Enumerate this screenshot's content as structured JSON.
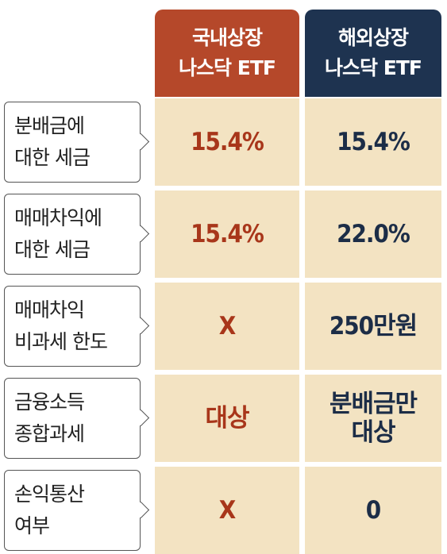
{
  "header": {
    "columns": [
      "국내상장\n나스닥 ETF",
      "해외상장\n나스닥 ETF"
    ]
  },
  "rows": [
    {
      "label": "분배금에\n대한 세금",
      "values": [
        "15.4%",
        "15.4%"
      ]
    },
    {
      "label": "매매차익에\n대한 세금",
      "values": [
        "15.4%",
        "22.0%"
      ]
    },
    {
      "label": "매매차익\n비과세 한도",
      "values": [
        "X",
        "250만원"
      ]
    },
    {
      "label": "금융소득\n종합과세",
      "values": [
        "대상",
        "분배금만\n대상"
      ]
    },
    {
      "label": "손익통산\n여부",
      "values": [
        "X",
        "0"
      ]
    }
  ]
}
